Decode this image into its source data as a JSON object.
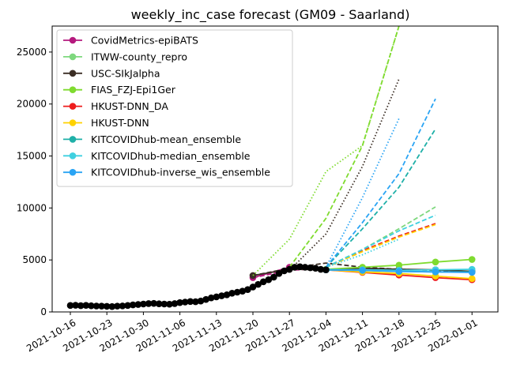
{
  "chart_data": {
    "type": "line",
    "title": "weekly_inc_case forecast (GM09 - Saarland)",
    "xlabel": "",
    "ylabel": "",
    "ylim": [
      0,
      27500
    ],
    "y_ticks": [
      0,
      5000,
      10000,
      15000,
      20000,
      25000
    ],
    "x_tick_labels": [
      "2021-10-16",
      "2021-10-23",
      "2021-10-30",
      "2021-11-06",
      "2021-11-13",
      "2021-11-20",
      "2021-11-27",
      "2021-12-04",
      "2021-12-11",
      "2021-12-18",
      "2021-12-25",
      "2022-01-01"
    ],
    "grid": false,
    "legend_position": "top-left",
    "observed": {
      "color": "#000000",
      "dates": [
        "2021-10-16",
        "2021-10-17",
        "2021-10-18",
        "2021-10-19",
        "2021-10-20",
        "2021-10-21",
        "2021-10-22",
        "2021-10-23",
        "2021-10-24",
        "2021-10-25",
        "2021-10-26",
        "2021-10-27",
        "2021-10-28",
        "2021-10-29",
        "2021-10-30",
        "2021-10-31",
        "2021-11-01",
        "2021-11-02",
        "2021-11-03",
        "2021-11-04",
        "2021-11-05",
        "2021-11-06",
        "2021-11-07",
        "2021-11-08",
        "2021-11-09",
        "2021-11-10",
        "2021-11-11",
        "2021-11-12",
        "2021-11-13",
        "2021-11-14",
        "2021-11-15",
        "2021-11-16",
        "2021-11-17",
        "2021-11-18",
        "2021-11-19",
        "2021-11-20",
        "2021-11-21",
        "2021-11-22",
        "2021-11-23",
        "2021-11-24",
        "2021-11-25",
        "2021-11-26",
        "2021-11-27",
        "2021-11-28",
        "2021-11-29",
        "2021-11-30",
        "2021-12-01",
        "2021-12-02",
        "2021-12-03",
        "2021-12-04"
      ],
      "values": [
        620,
        640,
        600,
        630,
        590,
        570,
        560,
        540,
        520,
        560,
        580,
        620,
        680,
        720,
        760,
        800,
        820,
        780,
        760,
        740,
        800,
        900,
        950,
        1000,
        980,
        1050,
        1200,
        1350,
        1450,
        1550,
        1650,
        1800,
        1900,
        2000,
        2150,
        2400,
        2650,
        2900,
        3100,
        3350,
        3700,
        3950,
        4100,
        4300,
        4350,
        4300,
        4250,
        4200,
        4100,
        4050
      ]
    },
    "series": [
      {
        "name": "CovidMetrics-epiBATS",
        "color": "#b5197e",
        "lines": [
          {
            "style": "solid",
            "dates": [
              "2021-11-20",
              "2021-11-27"
            ],
            "values": [
              3300,
              4300
            ]
          },
          {
            "style": "dashed",
            "dates": [
              "2021-11-20",
              "2021-11-27",
              "2021-12-04"
            ],
            "values": [
              3300,
              4000,
              4200
            ]
          }
        ]
      },
      {
        "name": "ITWW-county_repro",
        "color": "#7ed87e",
        "lines": [
          {
            "style": "dashed",
            "dates": [
              "2021-12-04",
              "2021-12-11",
              "2021-12-18",
              "2021-12-25"
            ],
            "values": [
              4300,
              6000,
              8000,
              10100
            ]
          }
        ]
      },
      {
        "name": "USC-SIkJalpha",
        "color": "#3b2e25",
        "lines": [
          {
            "style": "solid",
            "dates": [
              "2021-11-20",
              "2021-11-27",
              "2021-12-04",
              "2021-12-11",
              "2021-12-18",
              "2021-12-25",
              "2022-01-01"
            ],
            "values": [
              3500,
              4100,
              4050,
              4200,
              4100,
              4050,
              3900
            ]
          },
          {
            "style": "dashed",
            "dates": [
              "2021-11-20",
              "2021-11-27",
              "2021-12-04",
              "2021-12-11",
              "2021-12-18",
              "2021-12-25",
              "2022-01-01"
            ],
            "values": [
              3500,
              4200,
              4700,
              4300,
              4100,
              4000,
              3900
            ]
          },
          {
            "style": "dotted",
            "dates": [
              "2021-11-27",
              "2021-12-04",
              "2021-12-11",
              "2021-12-18"
            ],
            "values": [
              4000,
              7500,
              14000,
              22400
            ]
          }
        ]
      },
      {
        "name": "FIAS_FZJ-Epi1Ger",
        "color": "#7fdb2f",
        "lines": [
          {
            "style": "solid",
            "dates": [
              "2021-12-04",
              "2021-12-11",
              "2021-12-18",
              "2021-12-25",
              "2022-01-01"
            ],
            "values": [
              4100,
              4300,
              4500,
              4800,
              5050
            ]
          },
          {
            "style": "dashed",
            "dates": [
              "2021-11-27",
              "2021-12-04",
              "2021-12-11",
              "2021-12-18"
            ],
            "values": [
              4300,
              9000,
              16000,
              27500
            ]
          },
          {
            "style": "dotted",
            "dates": [
              "2021-11-20",
              "2021-11-27",
              "2021-12-04",
              "2021-12-11",
              "2021-12-18"
            ],
            "values": [
              3500,
              7000,
              13500,
              16000,
              27500
            ]
          }
        ]
      },
      {
        "name": "HKUST-DNN_DA",
        "color": "#ee1c1c",
        "lines": [
          {
            "style": "solid",
            "dates": [
              "2021-12-04",
              "2021-12-11",
              "2021-12-18",
              "2021-12-25",
              "2022-01-01"
            ],
            "values": [
              4050,
              3800,
              3550,
              3300,
              3100
            ]
          },
          {
            "style": "dashed",
            "dates": [
              "2021-12-04",
              "2021-12-11",
              "2021-12-18",
              "2021-12-25"
            ],
            "values": [
              4300,
              5900,
              7300,
              8500
            ]
          }
        ]
      },
      {
        "name": "HKUST-DNN",
        "color": "#ffd200",
        "lines": [
          {
            "style": "solid",
            "dates": [
              "2021-12-04",
              "2021-12-11",
              "2021-12-18",
              "2021-12-25",
              "2022-01-01"
            ],
            "values": [
              4050,
              3850,
              3700,
              3450,
              3200
            ]
          },
          {
            "style": "dashed",
            "dates": [
              "2021-12-04",
              "2021-12-11",
              "2021-12-18",
              "2021-12-25"
            ],
            "values": [
              4300,
              5800,
              7200,
              8400
            ]
          }
        ]
      },
      {
        "name": "KITCOVIDhub-mean_ensemble",
        "color": "#1fb0a8",
        "lines": [
          {
            "style": "solid",
            "dates": [
              "2021-12-04",
              "2021-12-11",
              "2021-12-18",
              "2021-12-25",
              "2022-01-01"
            ],
            "values": [
              4050,
              4000,
              3900,
              3850,
              3850
            ]
          },
          {
            "style": "dashed",
            "dates": [
              "2021-12-04",
              "2021-12-11",
              "2021-12-18",
              "2021-12-25"
            ],
            "values": [
              4300,
              8000,
              12000,
              17600
            ]
          }
        ]
      },
      {
        "name": "KITCOVIDhub-median_ensemble",
        "color": "#3fd0e0",
        "lines": [
          {
            "style": "solid",
            "dates": [
              "2021-12-04",
              "2021-12-11",
              "2021-12-18",
              "2021-12-25",
              "2022-01-01"
            ],
            "values": [
              4050,
              4050,
              4000,
              4050,
              4100
            ]
          },
          {
            "style": "dashed",
            "dates": [
              "2021-12-04",
              "2021-12-11",
              "2021-12-18",
              "2021-12-25"
            ],
            "values": [
              4300,
              6000,
              7800,
              9300
            ]
          },
          {
            "style": "dotted",
            "dates": [
              "2021-12-04",
              "2021-12-11",
              "2021-12-18"
            ],
            "values": [
              4300,
              5500,
              7000
            ]
          }
        ]
      },
      {
        "name": "KITCOVIDhub-inverse_wis_ensemble",
        "color": "#2aa4f4",
        "lines": [
          {
            "style": "solid",
            "dates": [
              "2021-12-04",
              "2021-12-11",
              "2021-12-18",
              "2021-12-25",
              "2022-01-01"
            ],
            "values": [
              4050,
              4000,
              3900,
              3850,
              3800
            ]
          },
          {
            "style": "dashed",
            "dates": [
              "2021-12-04",
              "2021-12-11",
              "2021-12-18",
              "2021-12-25"
            ],
            "values": [
              4300,
              8600,
              13300,
              20500
            ]
          },
          {
            "style": "dotted",
            "dates": [
              "2021-12-04",
              "2021-12-11",
              "2021-12-18"
            ],
            "values": [
              4300,
              11000,
              18600
            ]
          }
        ]
      }
    ]
  }
}
